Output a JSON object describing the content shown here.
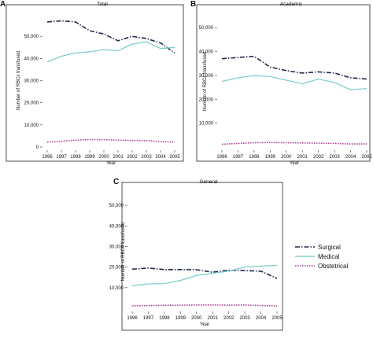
{
  "chart_data": [
    {
      "type": "line",
      "panel": "A",
      "title": "Total",
      "xlabel": "Year",
      "ylabel": "Number of RBCs transfused",
      "x": [
        1996,
        1997,
        1998,
        1999,
        2000,
        2001,
        2002,
        2003,
        2004,
        2005
      ],
      "x_ticks": [
        "1996",
        "1997",
        "1998",
        "1999",
        "2000",
        "2001",
        "2002",
        "2003",
        "2004",
        "2005"
      ],
      "ylim": [
        0,
        60000
      ],
      "y_ticks": [
        0,
        10000,
        20000,
        30000,
        40000,
        50000
      ],
      "y_tick_labels": [
        "0",
        "10,000",
        "20,000",
        "30,000",
        "40,000",
        "50,000"
      ],
      "series": [
        {
          "name": "Surgical",
          "color": "#1f2a4f",
          "dash": "dashdot",
          "values": [
            56500,
            57000,
            56500,
            52500,
            51000,
            48000,
            50000,
            49000,
            47000,
            42500
          ]
        },
        {
          "name": "Medical",
          "color": "#7fcfcf",
          "dash": "solid",
          "values": [
            38500,
            41000,
            42500,
            43000,
            44000,
            43500,
            46500,
            47500,
            44500,
            45000
          ]
        },
        {
          "name": "Obstetrical",
          "color": "#c0399a",
          "dash": "dotted",
          "values": [
            2200,
            2600,
            3100,
            3400,
            3300,
            3100,
            3000,
            2900,
            2500,
            2200
          ]
        }
      ]
    },
    {
      "type": "line",
      "panel": "B",
      "title": "Academic",
      "xlabel": "Year",
      "ylabel": "Number of RBCs transfused",
      "x": [
        1996,
        1997,
        1998,
        1999,
        2000,
        2001,
        2002,
        2003,
        2004,
        2005
      ],
      "x_ticks": [
        "1996",
        "1997",
        "1998",
        "1999",
        "2000",
        "2001",
        "2002",
        "2003",
        "2004",
        "2005"
      ],
      "ylim": [
        0,
        55000
      ],
      "y_ticks": [
        10000,
        20000,
        30000,
        40000,
        50000
      ],
      "y_tick_labels": [
        "10,000",
        "20,000",
        "30,000",
        "40,000",
        "50,000"
      ],
      "series": [
        {
          "name": "Surgical",
          "color": "#1f2a4f",
          "dash": "dashdot",
          "values": [
            37000,
            37500,
            38000,
            33500,
            32000,
            31000,
            31500,
            31000,
            29000,
            28500
          ]
        },
        {
          "name": "Medical",
          "color": "#7fcfcf",
          "dash": "solid",
          "values": [
            27500,
            29000,
            30000,
            29500,
            28000,
            26500,
            28500,
            27000,
            24000,
            24500
          ]
        },
        {
          "name": "Obstetrical",
          "color": "#c0399a",
          "dash": "dotted",
          "values": [
            1200,
            1500,
            1800,
            1900,
            1800,
            1700,
            1600,
            1500,
            1300,
            1300
          ]
        }
      ]
    },
    {
      "type": "line",
      "panel": "C",
      "title": "General",
      "xlabel": "Year",
      "ylabel": "Number of RBCs transfused",
      "x": [
        1996,
        1997,
        1998,
        1999,
        2000,
        2001,
        2002,
        2003,
        2004,
        2005
      ],
      "x_ticks": [
        "1996",
        "1997",
        "1998",
        "1999",
        "2000",
        "2001",
        "2002",
        "2003",
        "2004",
        "2005"
      ],
      "ylim": [
        0,
        55000
      ],
      "y_ticks": [
        10000,
        20000,
        30000,
        40000,
        50000
      ],
      "y_tick_labels": [
        "10,000",
        "20,000",
        "30,000",
        "40,000",
        "50,000"
      ],
      "series": [
        {
          "name": "Surgical",
          "color": "#1f2a4f",
          "dash": "dashdot",
          "values": [
            19000,
            19500,
            18800,
            18800,
            18700,
            17500,
            18500,
            18300,
            18000,
            14500
          ]
        },
        {
          "name": "Medical",
          "color": "#7fcfcf",
          "dash": "solid",
          "values": [
            11000,
            11800,
            12000,
            13500,
            16000,
            17000,
            18000,
            20000,
            20500,
            20800
          ]
        },
        {
          "name": "Obstetrical",
          "color": "#c0399a",
          "dash": "dotted",
          "values": [
            1200,
            1300,
            1400,
            1500,
            1600,
            1600,
            1500,
            1600,
            1300,
            1100
          ]
        }
      ]
    }
  ],
  "legend": [
    {
      "label": "Surgical",
      "color": "#1f2a4f",
      "dash": "dashdot"
    },
    {
      "label": "Medical",
      "color": "#7fcfcf",
      "dash": "solid"
    },
    {
      "label": "Obstetrical",
      "color": "#c0399a",
      "dash": "dotted"
    }
  ]
}
